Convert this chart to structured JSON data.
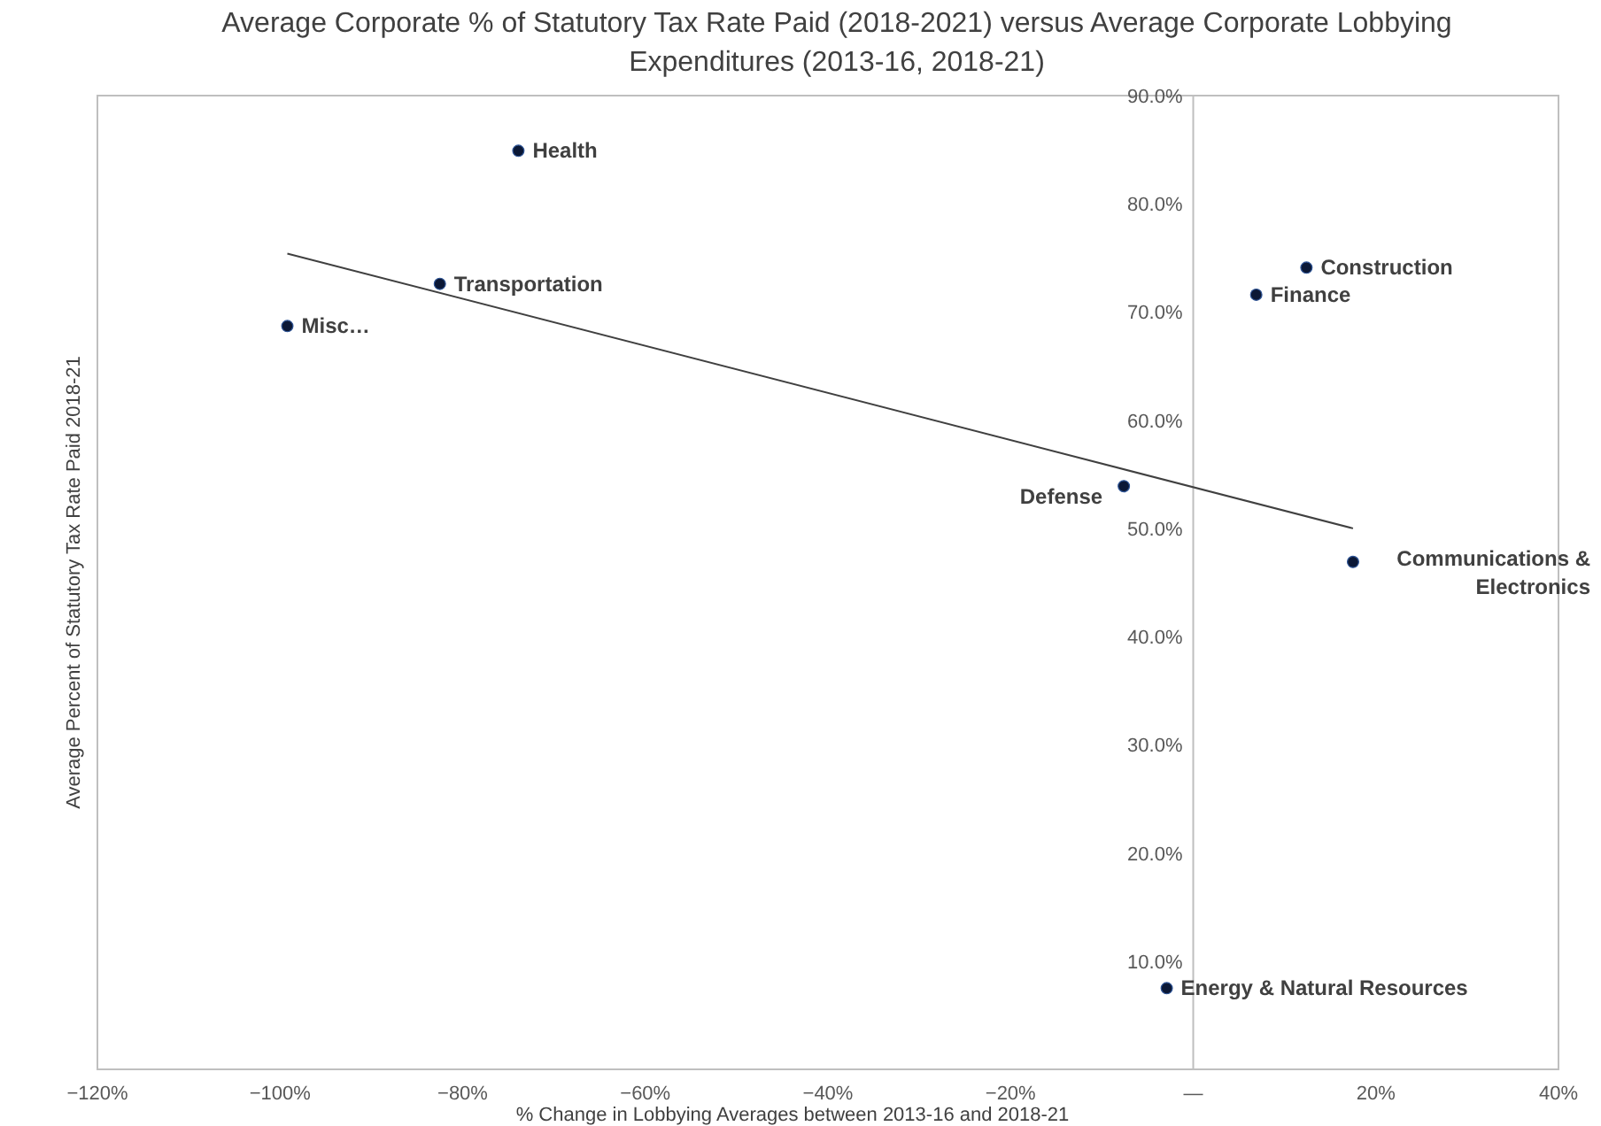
{
  "chart_data": {
    "type": "scatter",
    "title": "Average Corporate % of Statutory Tax Rate Paid (2018-2021) versus Average Corporate Lobbying Expenditures (2013-16, 2018-21)",
    "xlabel": "% Change in Lobbying Averages between 2013-16 and 2018-21",
    "ylabel": "Average Percent of Statutory Tax Rate Paid 2018-21",
    "xlim": [
      -120,
      40
    ],
    "xticks": [
      {
        "value": -120,
        "label": "−120%"
      },
      {
        "value": -100,
        "label": "−100%"
      },
      {
        "value": -80,
        "label": "−80%"
      },
      {
        "value": -60,
        "label": "−60%"
      },
      {
        "value": -40,
        "label": "−40%"
      },
      {
        "value": -20,
        "label": "−20%"
      },
      {
        "value": 0,
        "label": "—"
      },
      {
        "value": 20,
        "label": "20%"
      },
      {
        "value": 40,
        "label": "40%"
      }
    ],
    "ylim": [
      0,
      90
    ],
    "yticks": [
      {
        "value": 10,
        "label": "10.0%"
      },
      {
        "value": 20,
        "label": "20.0%"
      },
      {
        "value": 30,
        "label": "30.0%"
      },
      {
        "value": 40,
        "label": "40.0%"
      },
      {
        "value": 50,
        "label": "50.0%"
      },
      {
        "value": 60,
        "label": "60.0%"
      },
      {
        "value": 70,
        "label": "70.0%"
      },
      {
        "value": 80,
        "label": "80.0%"
      },
      {
        "value": 90,
        "label": "90.0%"
      }
    ],
    "grid": false,
    "marker": "circle",
    "series": [
      {
        "type": "line",
        "color": "#404040",
        "x": [
          -99.2,
          17.5
        ],
        "values": [
          75.4,
          50.0
        ],
        "marker": "none"
      },
      {
        "color": "#0b1836",
        "x": [
          -73.9,
          -82.5,
          -99.2,
          -7.6,
          -2.9,
          17.5,
          6.9,
          12.4
        ],
        "values": [
          84.9,
          72.6,
          68.7,
          53.9,
          7.5,
          46.9,
          71.6,
          74.1
        ]
      }
    ],
    "annotations": [
      {
        "text": "Health",
        "x": -73.9,
        "y": 84.9
      },
      {
        "text": "Transportation",
        "x": -82.5,
        "y": 72.6
      },
      {
        "text": "Misc…",
        "x": -99.2,
        "y": 68.7
      },
      {
        "text": "Defense",
        "x": -7.6,
        "y": 53.9
      },
      {
        "text": "Energy & Natural Resources",
        "x": -2.9,
        "y": 7.5
      },
      {
        "text": "Communications & Electronics",
        "x": 17.5,
        "y": 46.9
      },
      {
        "text": "Finance",
        "x": 6.9,
        "y": 71.6
      },
      {
        "text": "Construction",
        "x": 12.4,
        "y": 74.1
      }
    ]
  }
}
